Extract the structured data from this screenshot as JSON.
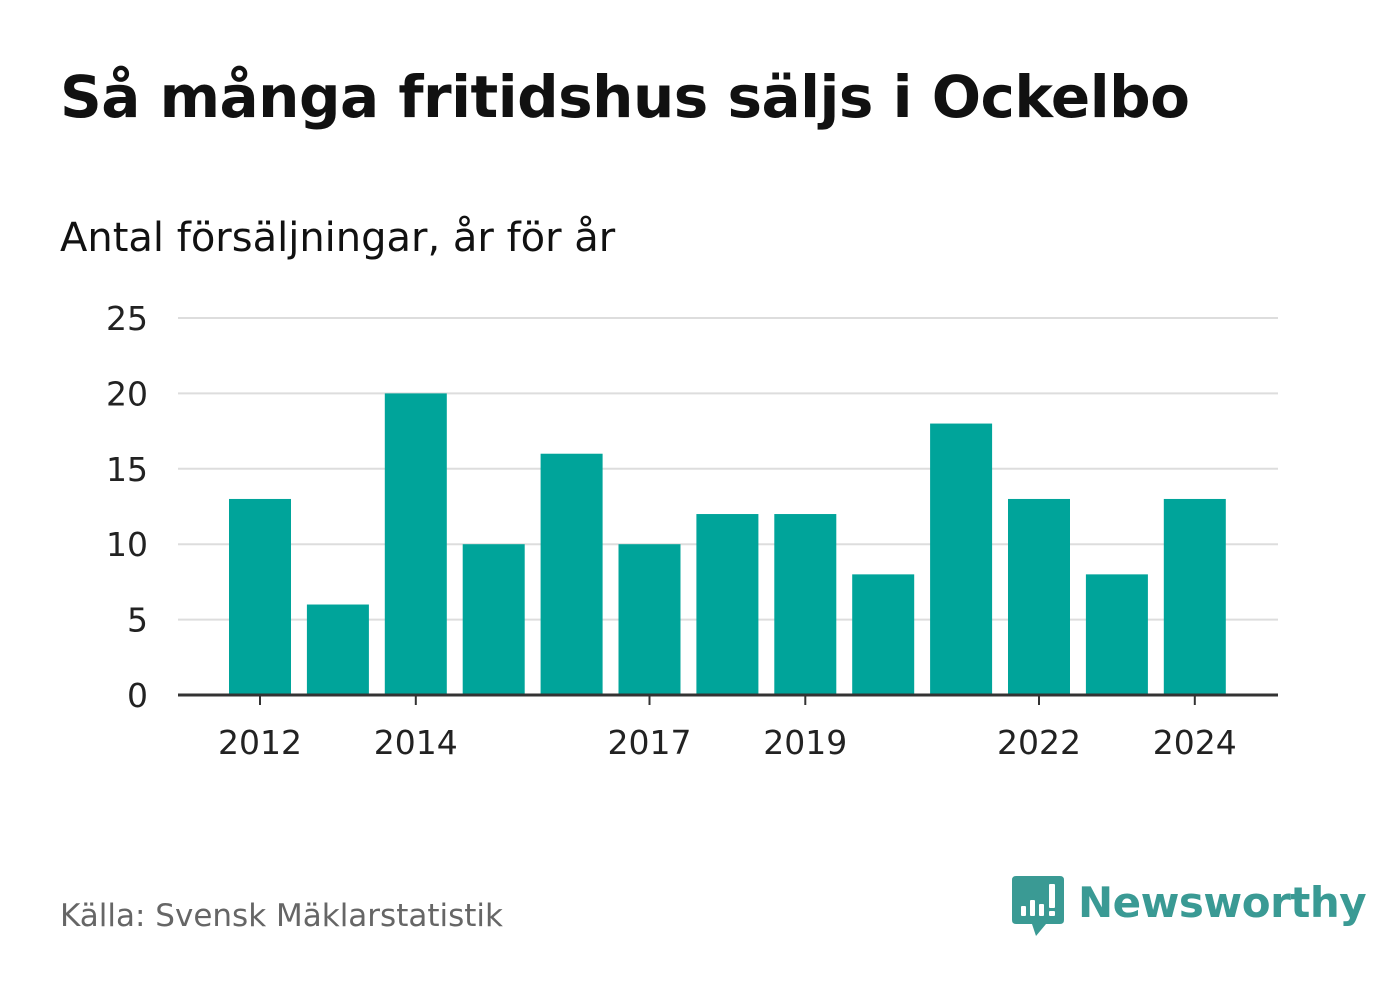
{
  "header": {
    "title": "Så många fritidshus säljs i Ockelbo",
    "subtitle": "Antal försäljningar, år för år"
  },
  "footer": {
    "source": "Källa: Svensk Mäklarstatistik",
    "brand": "Newsworthy"
  },
  "colors": {
    "bar": "#00a49a",
    "grid": "#dddddd",
    "axis": "#333333",
    "tick_text": "#222222",
    "source_text": "#666666",
    "brand": "#3a9a94"
  },
  "chart_data": {
    "type": "bar",
    "x": [
      2012,
      2013,
      2014,
      2015,
      2016,
      2017,
      2018,
      2019,
      2020,
      2021,
      2022,
      2023,
      2024
    ],
    "values": [
      13,
      6,
      20,
      10,
      16,
      10,
      12,
      12,
      8,
      18,
      13,
      8,
      13
    ],
    "x_tick_labels": [
      "2012",
      "2014",
      "2017",
      "2019",
      "2022",
      "2024"
    ],
    "y_ticks": [
      0,
      5,
      10,
      15,
      20,
      25
    ],
    "ylim": [
      0,
      25
    ],
    "grid": true,
    "legend": "none"
  }
}
